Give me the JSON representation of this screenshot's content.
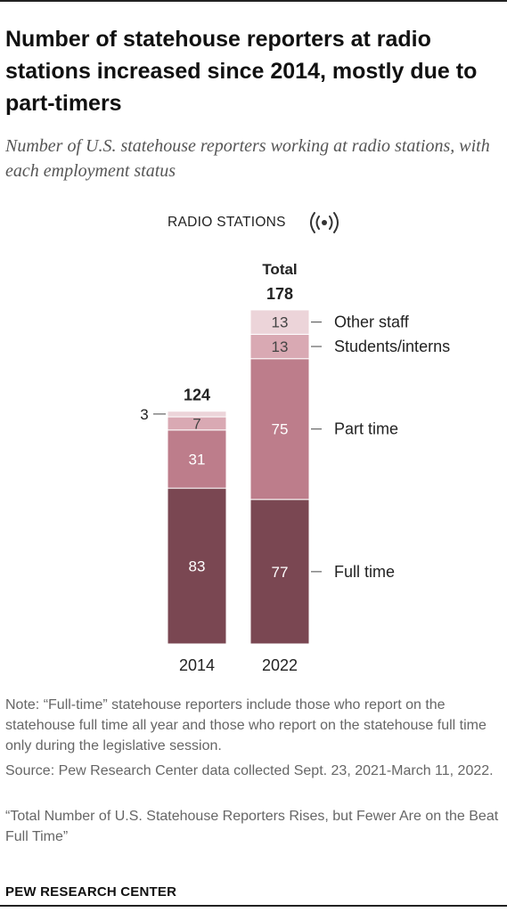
{
  "title": "Number of statehouse reporters at radio stations increased since 2014, mostly due to part-timers",
  "subtitle": "Number of U.S. statehouse reporters working at radio stations, with each employment status",
  "panel_label": "RADIO STATIONS",
  "icon": "radio-broadcast-icon",
  "note": "Note: “Full-time” statehouse reporters include those who report on the statehouse full time all year and those who report on the statehouse full time only during the legislative session.",
  "source": "Source: Pew Research Center data collected Sept. 23, 2021-March 11, 2022.",
  "report": "“Total Number of U.S. Statehouse Reporters Rises, but Fewer Are on the Beat Full Time”",
  "brand": "PEW RESEARCH CENTER",
  "chart_data": {
    "type": "bar",
    "stacked": true,
    "categories": [
      "2014",
      "2022"
    ],
    "series": [
      {
        "name": "Full time",
        "values": [
          83,
          77
        ],
        "color": "#7a4752",
        "label_color": "#ffffff"
      },
      {
        "name": "Part time",
        "values": [
          31,
          75
        ],
        "color": "#bd7d8b",
        "label_color": "#ffffff"
      },
      {
        "name": "Students/interns",
        "values": [
          7,
          13
        ],
        "color": "#d9a9b3",
        "label_color": "#444444"
      },
      {
        "name": "Other staff",
        "values": [
          3,
          13
        ],
        "color": "#ecd4d9",
        "label_color": "#444444"
      }
    ],
    "totals": [
      "124",
      "178"
    ],
    "total_heading": "Total",
    "ylim": [
      0,
      178
    ],
    "grid": false,
    "legend": "right of 2022 bar"
  }
}
